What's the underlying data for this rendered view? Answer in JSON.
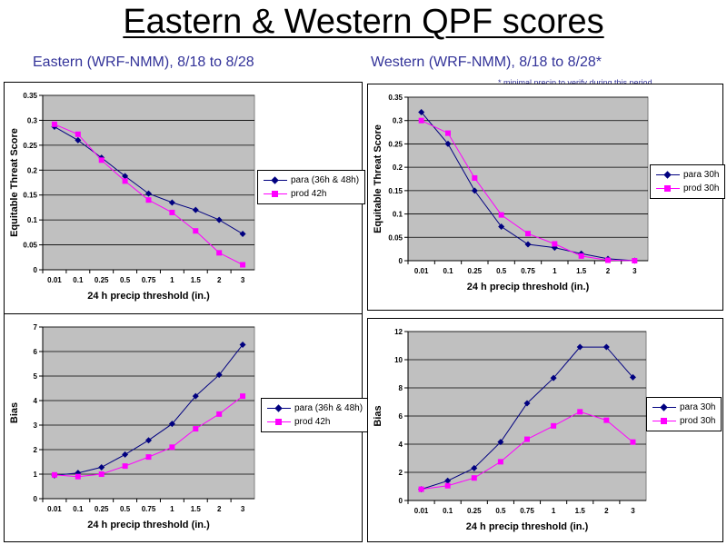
{
  "page": {
    "title": "Eastern & Western QPF scores",
    "subtitle_east": "Eastern (WRF-NMM), 8/18 to 8/28",
    "subtitle_west": "Western (WRF-NMM), 8/18 to 8/28*",
    "note": "* minimal precip to verify during this period"
  },
  "colors": {
    "para": "#000080",
    "prod": "#ff00ff",
    "plot_bg": "#c0c0c0"
  },
  "chart_data": [
    {
      "id": "east-ets",
      "type": "line",
      "categories": [
        "0.01",
        "0.1",
        "0.25",
        "0.5",
        "0.75",
        "1",
        "1.5",
        "2",
        "3"
      ],
      "ylabel": "Equitable Threat Score",
      "xlabel": "24 h precip threshold (in.)",
      "ylim": [
        0,
        0.35
      ],
      "yticks": [
        0,
        0.05,
        0.1,
        0.15,
        0.2,
        0.25,
        0.3,
        0.35
      ],
      "ytick_labels": [
        "0",
        "0.05",
        "0.1",
        "0.15",
        "0.2",
        "0.25",
        "0.3",
        "0.35"
      ],
      "grid": true,
      "legend_position": "right",
      "series": [
        {
          "name": "para (36h & 48h)",
          "values": [
            0.287,
            0.26,
            0.225,
            0.188,
            0.153,
            0.135,
            0.12,
            0.1,
            0.072
          ]
        },
        {
          "name": "prod 42h",
          "values": [
            0.292,
            0.272,
            0.22,
            0.178,
            0.14,
            0.115,
            0.078,
            0.034,
            0.01
          ]
        }
      ]
    },
    {
      "id": "west-ets",
      "type": "line",
      "categories": [
        "0.01",
        "0.1",
        "0.25",
        "0.5",
        "0.75",
        "1",
        "1.5",
        "2",
        "3"
      ],
      "ylabel": "Equitable Threat Score",
      "xlabel": "24 h precip threshold (in.)",
      "ylim": [
        0,
        0.35
      ],
      "yticks": [
        0,
        0.05,
        0.1,
        0.15,
        0.2,
        0.25,
        0.3,
        0.35
      ],
      "ytick_labels": [
        "0",
        "0.05",
        "0.1",
        "0.15",
        "0.2",
        "0.25",
        "0.3",
        "0.35"
      ],
      "grid": true,
      "legend_position": "right",
      "series": [
        {
          "name": "para 30h",
          "values": [
            0.318,
            0.25,
            0.15,
            0.073,
            0.035,
            0.028,
            0.015,
            0.004,
            0.0
          ]
        },
        {
          "name": "prod 30h",
          "values": [
            0.3,
            0.273,
            0.177,
            0.098,
            0.058,
            0.036,
            0.01,
            0.001,
            0.0
          ]
        }
      ]
    },
    {
      "id": "east-bias",
      "type": "line",
      "categories": [
        "0.01",
        "0.1",
        "0.25",
        "0.5",
        "0.75",
        "1",
        "1.5",
        "2",
        "3"
      ],
      "ylabel": "Bias",
      "xlabel": "24 h precip threshold (in.)",
      "ylim": [
        0,
        7
      ],
      "yticks": [
        0,
        1,
        2,
        3,
        4,
        5,
        6,
        7
      ],
      "ytick_labels": [
        "0",
        "1",
        "2",
        "3",
        "4",
        "5",
        "6",
        "7"
      ],
      "grid": true,
      "legend_position": "right",
      "series": [
        {
          "name": "para (36h & 48h)",
          "values": [
            0.95,
            1.05,
            1.28,
            1.8,
            2.38,
            3.05,
            4.18,
            5.05,
            6.28
          ]
        },
        {
          "name": "prod 42h",
          "values": [
            0.97,
            0.9,
            1.0,
            1.33,
            1.7,
            2.1,
            2.85,
            3.45,
            4.18
          ]
        }
      ]
    },
    {
      "id": "west-bias",
      "type": "line",
      "categories": [
        "0.01",
        "0.1",
        "0.25",
        "0.5",
        "0.75",
        "1",
        "1.5",
        "2",
        "3"
      ],
      "ylabel": "Bias",
      "xlabel": "24 h precip threshold (in.)",
      "ylim": [
        0,
        12
      ],
      "yticks": [
        0,
        2,
        4,
        6,
        8,
        10,
        12
      ],
      "ytick_labels": [
        "0",
        "2",
        "4",
        "6",
        "8",
        "10",
        "12"
      ],
      "grid": true,
      "legend_position": "right",
      "series": [
        {
          "name": "para 30h",
          "values": [
            0.8,
            1.4,
            2.3,
            4.15,
            6.9,
            8.7,
            10.9,
            10.9,
            8.75
          ]
        },
        {
          "name": "prod 30h",
          "values": [
            0.8,
            1.05,
            1.6,
            2.75,
            4.35,
            5.3,
            6.3,
            5.7,
            4.15
          ]
        }
      ]
    }
  ]
}
